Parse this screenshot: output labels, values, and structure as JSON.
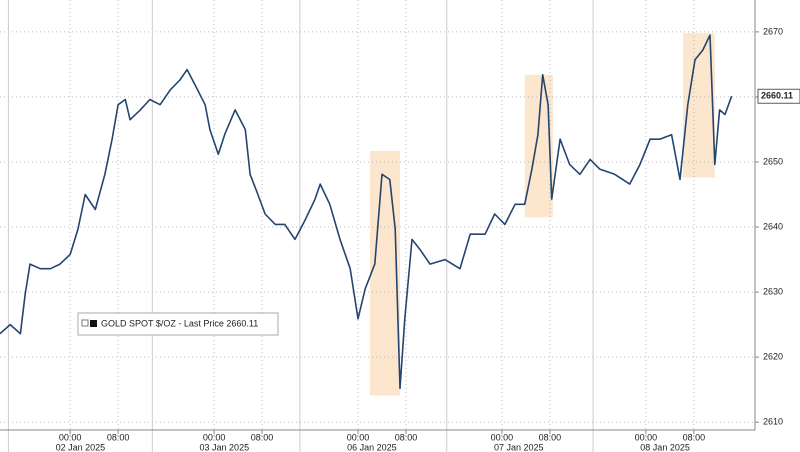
{
  "chart_data": {
    "type": "line",
    "x": [
      -11.7,
      -10,
      -8.3,
      -7.5,
      -6.7,
      -5,
      -3.3,
      -1.7,
      0,
      1.3,
      2.5,
      4.2,
      5.8,
      7,
      8,
      9.2,
      10,
      11.7,
      13.3,
      15,
      16.7,
      18.3,
      19.5,
      20.8,
      22.5,
      23.3,
      24.7,
      25.8,
      27.5,
      29.2,
      30,
      31.3,
      32.5,
      34.2,
      35.8,
      37.5,
      39.2,
      40.8,
      41.7,
      43.3,
      45,
      46.7,
      48,
      49.2,
      50.8,
      52,
      53.3,
      54.2,
      55,
      55.8,
      57,
      58.3,
      60,
      62.5,
      65,
      66.7,
      69.2,
      70.8,
      72.5,
      74.2,
      75.8,
      77,
      78,
      78.8,
      79.7,
      80.3,
      81.7,
      83.3,
      85,
      86.7,
      88.3,
      90.8,
      93.3,
      95,
      96.7,
      98.3,
      100.3,
      101.7,
      103,
      104.2,
      105.5,
      106.7,
      107.5,
      108.3,
      109.2,
      110.3
    ],
    "series": [
      {
        "name": "GOLD SPOT $/OZ - Last Price 2660.11",
        "color": "#24456e",
        "values": [
          2623.6,
          2625,
          2623.6,
          2629.7,
          2634.3,
          2633.6,
          2633.6,
          2634.3,
          2635.8,
          2639.7,
          2645,
          2642.7,
          2648.1,
          2653.5,
          2658.8,
          2659.6,
          2656.5,
          2658,
          2659.6,
          2658.8,
          2661.1,
          2662.6,
          2664.2,
          2661.9,
          2658.8,
          2655,
          2651.2,
          2654.3,
          2658,
          2655,
          2648.1,
          2645,
          2642,
          2640.4,
          2640.4,
          2638.1,
          2641.1,
          2644.2,
          2646.6,
          2643.5,
          2638.1,
          2633.6,
          2625.9,
          2630.5,
          2634.3,
          2648.1,
          2647.3,
          2639.7,
          2615.2,
          2625.9,
          2638.1,
          2636.6,
          2634.3,
          2635,
          2633.6,
          2638.9,
          2638.9,
          2642,
          2640.4,
          2643.5,
          2643.5,
          2648.9,
          2654.2,
          2663.4,
          2658.8,
          2644.3,
          2653.5,
          2649.6,
          2648.1,
          2650.4,
          2648.9,
          2648.1,
          2646.6,
          2649.6,
          2653.5,
          2653.5,
          2654.2,
          2647.3,
          2658.8,
          2665.7,
          2667.2,
          2669.5,
          2649.6,
          2658,
          2657.3,
          2660.11
        ]
      }
    ],
    "last_price": 2660.11,
    "highlights": [
      {
        "x0": 50,
        "x1": 55,
        "y0": 2614.1,
        "y1": 2651.7
      },
      {
        "x0": 75.8,
        "x1": 80.5,
        "y0": 2641.5,
        "y1": 2663.4
      },
      {
        "x0": 102.2,
        "x1": 107.5,
        "y0": 2647.6,
        "y1": 2669.8
      }
    ],
    "xlim": [
      -11.7,
      114.2
    ],
    "ylim": [
      2608.8,
      2674.9
    ],
    "yticks": [
      2610,
      2620,
      2630,
      2640,
      2650,
      2660,
      2670
    ],
    "xticks": [
      {
        "value": 0,
        "label": "00:00"
      },
      {
        "value": 8,
        "label": "08:00"
      },
      {
        "value": 24,
        "label": "00:00"
      },
      {
        "value": 32,
        "label": "08:00"
      },
      {
        "value": 48,
        "label": "00:00"
      },
      {
        "value": 56,
        "label": "08:00"
      },
      {
        "value": 72,
        "label": "00:00"
      },
      {
        "value": 80,
        "label": "08:00"
      },
      {
        "value": 96,
        "label": "00:00"
      },
      {
        "value": 104,
        "label": "08:00"
      }
    ],
    "day_ticks": [
      {
        "value": -10.3,
        "label": "02 Jan 2025"
      },
      {
        "value": 13.7,
        "label": "03 Jan 2025"
      },
      {
        "value": 38.3,
        "label": "06 Jan 2025"
      },
      {
        "value": 62.8,
        "label": "07 Jan 2025"
      },
      {
        "value": 87.2,
        "label": "08 Jan 2025"
      }
    ],
    "grid": true
  }
}
